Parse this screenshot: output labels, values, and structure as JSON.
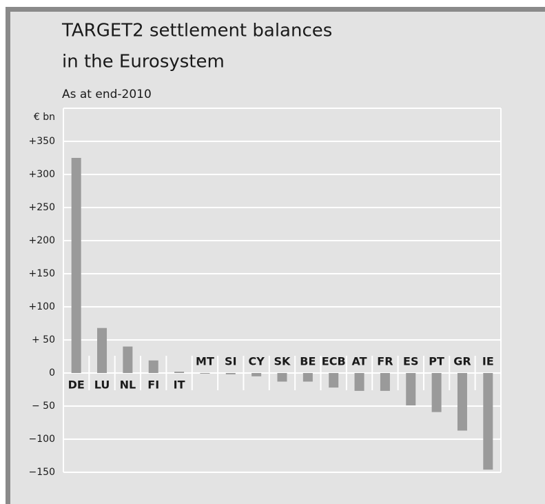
{
  "chart_data": {
    "type": "bar",
    "title": [
      "TARGET2 settlement balances",
      "in the Eurosystem"
    ],
    "subtitle": "As at end-2010",
    "y_label": "€ bn",
    "categories": [
      "DE",
      "LU",
      "NL",
      "FI",
      "IT",
      "MT",
      "SI",
      "CY",
      "SK",
      "BE",
      "ECB",
      "AT",
      "FR",
      "ES",
      "PT",
      "GR",
      "IE"
    ],
    "values": [
      325,
      68,
      40,
      19,
      2,
      0,
      -2,
      -5,
      -13,
      -13,
      -22,
      -27,
      -27,
      -49,
      -59,
      -87,
      -146
    ],
    "color": "#9a9a9a",
    "ylim": [
      -150,
      400
    ],
    "yticks": [
      {
        "value": -150,
        "label": "−150"
      },
      {
        "value": -100,
        "label": "−100"
      },
      {
        "value": -50,
        "label": "− 50"
      },
      0,
      {
        "value": 50,
        "label": "+ 50"
      },
      {
        "value": 100,
        "label": "+100"
      },
      {
        "value": 150,
        "label": "+150"
      },
      {
        "value": 200,
        "label": "+200"
      },
      {
        "value": 250,
        "label": "+250"
      },
      {
        "value": 300,
        "label": "+300"
      },
      {
        "value": 350,
        "label": "+350"
      }
    ],
    "grid": true
  }
}
